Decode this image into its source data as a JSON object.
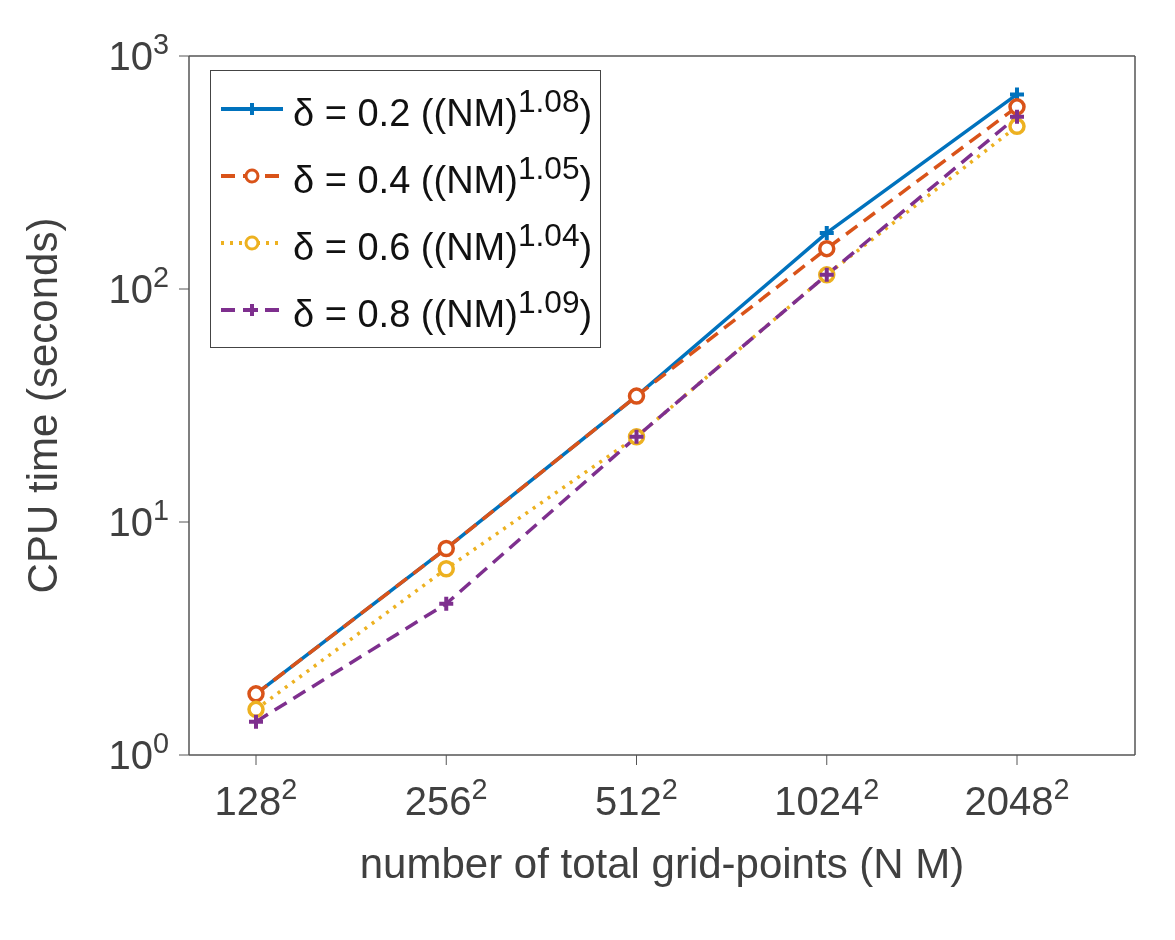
{
  "chart_data": {
    "type": "line",
    "xlabel": "number of total grid-points (N M)",
    "ylabel": "CPU time (seconds)",
    "categories": [
      "128$^{2}$",
      "256$^{2}$",
      "512$^{2}$",
      "1024$^{2}$",
      "2048$^{2}$"
    ],
    "ylim": [
      1,
      1000
    ],
    "yticks": [
      {
        "value": 1,
        "label": "10$^{0}$"
      },
      {
        "value": 10,
        "label": "10$^{1}$"
      },
      {
        "value": 100,
        "label": "10$^{2}$"
      },
      {
        "value": 1000,
        "label": "10$^{3}$"
      }
    ],
    "log": true,
    "legend": "top left",
    "series": [
      {
        "name": "δ = 0.2 ((NM)$^{1.08}$)",
        "color": "#0072bd",
        "marker": "cross",
        "line_style": "solid",
        "values": [
          1.83,
          7.7,
          34.7,
          174,
          684
        ]
      },
      {
        "name": "δ = 0.4 ((NM)$^{1.05}$)",
        "color": "#d95319",
        "marker": "circle",
        "line_style": "dashed",
        "values": [
          1.83,
          7.7,
          34.7,
          149,
          605
        ]
      },
      {
        "name": "δ = 0.6 ((NM)$^{1.04}$)",
        "color": "#edb120",
        "marker": "circle",
        "line_style": "dotted",
        "values": [
          1.57,
          6.3,
          23.2,
          115,
          499
        ]
      },
      {
        "name": "δ = 0.8 ((NM)$^{1.09}$)",
        "color": "#7e2f8e",
        "marker": "cross",
        "line_style": "dashed",
        "values": [
          1.39,
          4.46,
          23.2,
          115,
          549
        ]
      }
    ]
  }
}
